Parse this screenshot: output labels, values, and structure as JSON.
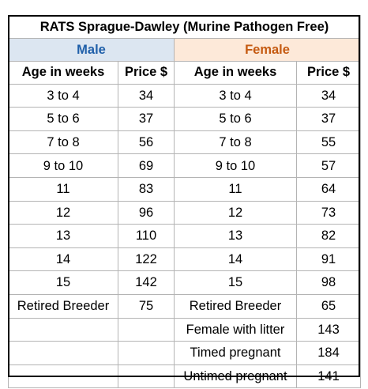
{
  "title": "RATS Sprague-Dawley (Murine Pathogen Free)",
  "male": {
    "label": "Male",
    "color": "#1f5fa9"
  },
  "female": {
    "label": "Female",
    "color": "#c55a11"
  },
  "columns": {
    "age": "Age in weeks",
    "price": "Price $"
  },
  "rows": [
    {
      "male_age": "3 to 4",
      "male_price": "34",
      "female_age": "3 to 4",
      "female_price": "34"
    },
    {
      "male_age": "5 to 6",
      "male_price": "37",
      "female_age": "5 to 6",
      "female_price": "37"
    },
    {
      "male_age": "7 to 8",
      "male_price": "56",
      "female_age": "7 to 8",
      "female_price": "55"
    },
    {
      "male_age": "9 to 10",
      "male_price": "69",
      "female_age": "9 to 10",
      "female_price": "57"
    },
    {
      "male_age": "11",
      "male_price": "83",
      "female_age": "11",
      "female_price": "64"
    },
    {
      "male_age": "12",
      "male_price": "96",
      "female_age": "12",
      "female_price": "73"
    },
    {
      "male_age": "13",
      "male_price": "110",
      "female_age": "13",
      "female_price": "82"
    },
    {
      "male_age": "14",
      "male_price": "122",
      "female_age": "14",
      "female_price": "91"
    },
    {
      "male_age": "15",
      "male_price": "142",
      "female_age": "15",
      "female_price": "98"
    },
    {
      "male_age": "Retired Breeder",
      "male_price": "75",
      "female_age": "Retired Breeder",
      "female_price": "65"
    },
    {
      "male_age": "",
      "male_price": "",
      "female_age": "Female with litter",
      "female_price": "143"
    },
    {
      "male_age": "",
      "male_price": "",
      "female_age": "Timed pregnant",
      "female_price": "184"
    },
    {
      "male_age": "",
      "male_price": "",
      "female_age": "Untimed pregnant",
      "female_price": "141"
    }
  ]
}
